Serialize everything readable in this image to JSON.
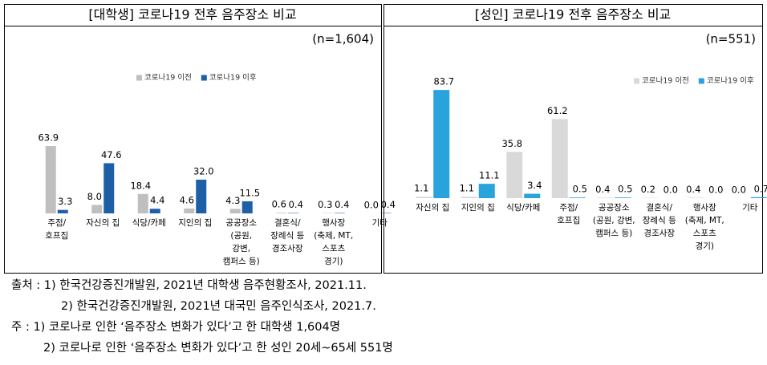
{
  "chart_data": [
    {
      "type": "bar",
      "title": "[대학생] 코로나19 전후 음주장소 비교",
      "subtitle": "(n=1,604)",
      "categories": [
        [
          "주점/",
          "호프집"
        ],
        [
          "자신의 집"
        ],
        [
          "식당/카페"
        ],
        [
          "지인의 집"
        ],
        [
          "공공장소",
          "(공원,",
          "강변,",
          "캠퍼스 등)"
        ],
        [
          "결혼식/",
          "장례식 등",
          "경조사장"
        ],
        [
          "행사장",
          "(축제, MT,",
          "스포츠",
          "경기)"
        ],
        [
          "기타"
        ]
      ],
      "series": [
        {
          "name": "코로나19 이전",
          "color": "#bfbfbf",
          "values": [
            63.9,
            8.0,
            18.4,
            4.6,
            4.3,
            0.6,
            0.3,
            0.0
          ],
          "value_labels": [
            "63.9",
            "8.0",
            "18.4",
            "4.6",
            "4.3",
            "0.6",
            "0.3",
            "0.0"
          ]
        },
        {
          "name": "코로나19 이후",
          "color": "#1f5fa8",
          "values": [
            3.3,
            47.6,
            4.4,
            32.0,
            11.5,
            0.4,
            0.4,
            0.4
          ],
          "value_labels": [
            "3.3",
            "47.6",
            "4.4",
            "32.0",
            "11.5",
            "0.4",
            "0.4",
            "0.4"
          ]
        }
      ],
      "ylim": [
        0,
        70
      ]
    },
    {
      "type": "bar",
      "title": "[성인] 코로나19 전후 음주장소 비교",
      "subtitle": "(n=551)",
      "categories": [
        [
          "자신의 집"
        ],
        [
          "지인의 집"
        ],
        [
          "식당/카페"
        ],
        [
          "주점/",
          "호프집"
        ],
        [
          "공공장소",
          "(공원, 강변,",
          "캠퍼스 등)"
        ],
        [
          "결혼식/",
          "장례식 등",
          "경조사장"
        ],
        [
          "행사장",
          "(축제, MT,",
          "스포츠",
          "경기)"
        ],
        [
          "기타"
        ]
      ],
      "series": [
        {
          "name": "코로나19 이전",
          "color": "#d9d9d9",
          "values": [
            1.1,
            1.1,
            35.8,
            61.2,
            0.4,
            0.2,
            0.4,
            0.0
          ],
          "value_labels": [
            "1.1",
            "1.1",
            "35.8",
            "61.2",
            "0.4",
            "0.2",
            "0.4",
            "0.0"
          ]
        },
        {
          "name": "코로나19 이후",
          "color": "#29a3dc",
          "values": [
            83.7,
            11.1,
            3.4,
            0.5,
            0.5,
            0.0,
            0.0,
            0.7
          ],
          "value_labels": [
            "83.7",
            "11.1",
            "3.4",
            "0.5",
            "0.5",
            "0.0",
            "0.0",
            "0.7"
          ]
        }
      ],
      "ylim": [
        0,
        90
      ]
    }
  ],
  "notes": [
    "출처 : 1) 한국건강증진개발원, 2021년 대학생 음주현황조사, 2021.11.",
    "2) 한국건강증진개발원, 2021년 대국민 음주인식조사, 2021.7.",
    "주 : 1) 코로나로 인한 ‘음주장소 변화가 있다’고 한 대학생 1,604명",
    "2) 코로나로 인한 ‘음주장소 변화가 있다’고 한 성인 20세~65세 551명"
  ]
}
